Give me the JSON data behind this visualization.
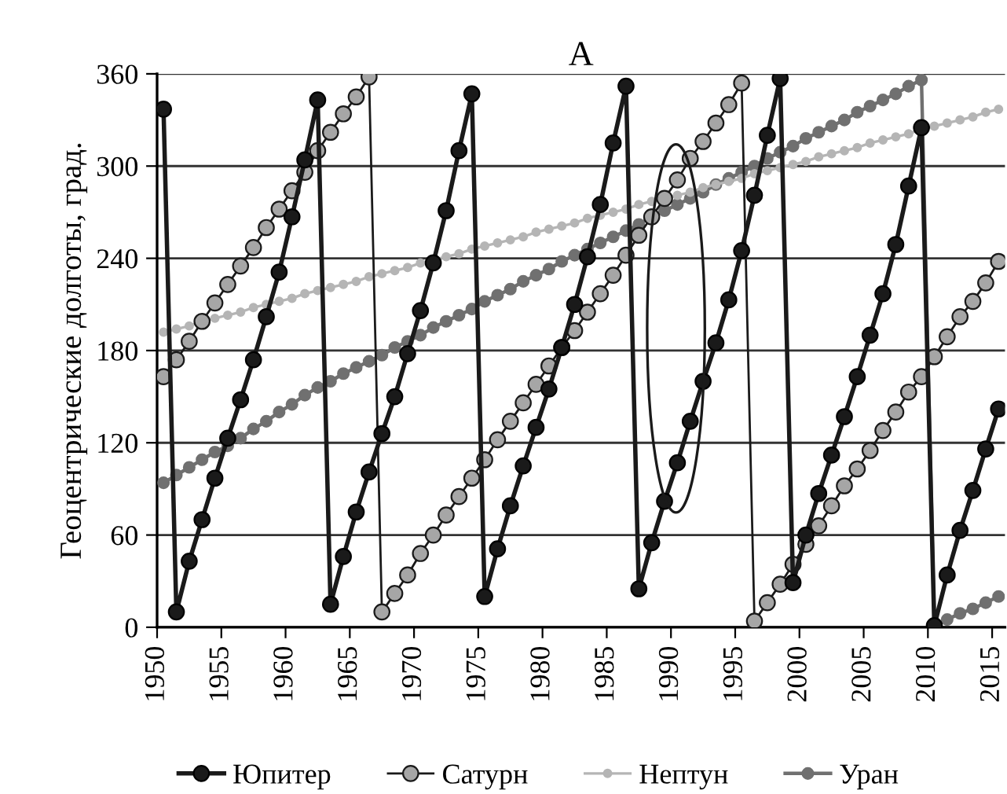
{
  "chart_data": {
    "type": "line",
    "title": "A",
    "ylabel": "Геоцентрические долготы, град.",
    "x": [
      1950.5,
      1951.5,
      1952.5,
      1953.5,
      1954.5,
      1955.5,
      1956.5,
      1957.5,
      1958.5,
      1959.5,
      1960.5,
      1961.5,
      1962.5,
      1963.5,
      1964.5,
      1965.5,
      1966.5,
      1967.5,
      1968.5,
      1969.5,
      1970.5,
      1971.5,
      1972.5,
      1973.5,
      1974.5,
      1975.5,
      1976.5,
      1977.5,
      1978.5,
      1979.5,
      1980.5,
      1981.5,
      1982.5,
      1983.5,
      1984.5,
      1985.5,
      1986.5,
      1987.5,
      1988.5,
      1989.5,
      1990.5,
      1991.5,
      1992.5,
      1993.5,
      1994.5,
      1995.5,
      1996.5,
      1997.5,
      1998.5,
      1999.5,
      2000.5,
      2001.5,
      2002.5,
      2003.5,
      2004.5,
      2005.5,
      2006.5,
      2007.5,
      2008.5,
      2009.5,
      2010.5,
      2011.5,
      2012.5,
      2013.5,
      2014.5,
      2015.5
    ],
    "series": [
      {
        "name": "Юпитер",
        "color": "#1a1a1a",
        "values": [
          337,
          10,
          43,
          70,
          97,
          123,
          148,
          174,
          202,
          231,
          267,
          304,
          343,
          15,
          46,
          75,
          101,
          126,
          150,
          178,
          206,
          237,
          271,
          310,
          347,
          20,
          51,
          79,
          105,
          130,
          155,
          182,
          210,
          241,
          275,
          315,
          352,
          25,
          55,
          82,
          107,
          134,
          160,
          185,
          213,
          245,
          281,
          320,
          357,
          29,
          60,
          87,
          112,
          137,
          163,
          190,
          217,
          249,
          287,
          325,
          1,
          34,
          63,
          89,
          116,
          142
        ]
      },
      {
        "name": "Сатурн",
        "color": "#a6a6a6",
        "values": [
          163,
          174,
          186,
          199,
          211,
          223,
          235,
          247,
          260,
          272,
          284,
          296,
          310,
          322,
          334,
          345,
          358,
          10,
          22,
          34,
          48,
          60,
          73,
          85,
          97,
          109,
          122,
          134,
          146,
          158,
          170,
          182,
          193,
          205,
          217,
          229,
          242,
          255,
          267,
          279,
          291,
          305,
          316,
          328,
          340,
          354,
          4,
          16,
          28,
          41,
          54,
          66,
          79,
          92,
          103,
          115,
          128,
          140,
          153,
          163,
          176,
          189,
          202,
          212,
          224,
          238
        ]
      },
      {
        "name": "Нептун",
        "color": "#b5b5b5",
        "values": [
          192,
          194,
          196,
          199,
          201,
          203,
          205,
          208,
          210,
          212,
          214,
          217,
          219,
          221,
          223,
          225,
          228,
          230,
          232,
          234,
          237,
          239,
          241,
          243,
          246,
          248,
          250,
          252,
          254,
          257,
          259,
          261,
          263,
          266,
          268,
          270,
          272,
          275,
          277,
          279,
          281,
          283,
          286,
          288,
          290,
          292,
          295,
          297,
          299,
          301,
          303,
          306,
          308,
          310,
          312,
          315,
          317,
          319,
          321,
          324,
          326,
          328,
          330,
          332,
          335,
          337
        ]
      },
      {
        "name": "Уран",
        "color": "#707070",
        "values": [
          94,
          99,
          104,
          109,
          114,
          118,
          123,
          129,
          134,
          140,
          145,
          151,
          156,
          160,
          165,
          169,
          173,
          177,
          182,
          186,
          190,
          195,
          199,
          203,
          207,
          212,
          216,
          220,
          225,
          229,
          233,
          238,
          242,
          246,
          250,
          254,
          258,
          262,
          267,
          271,
          275,
          279,
          283,
          288,
          292,
          296,
          300,
          305,
          309,
          313,
          318,
          322,
          326,
          330,
          335,
          339,
          343,
          347,
          352,
          356,
          1,
          5,
          9,
          12,
          16,
          20
        ]
      }
    ],
    "xlim": [
      1950,
      2016
    ],
    "xticks": [
      1950,
      1955,
      1960,
      1965,
      1970,
      1975,
      1980,
      1985,
      1990,
      1995,
      2000,
      2005,
      2010,
      2015
    ],
    "ylim": [
      0,
      360
    ],
    "yticks": [
      0,
      60,
      120,
      180,
      240,
      300,
      360
    ],
    "grid": "y",
    "legend": "bottom",
    "marker": "circle",
    "line_style": "solid"
  }
}
